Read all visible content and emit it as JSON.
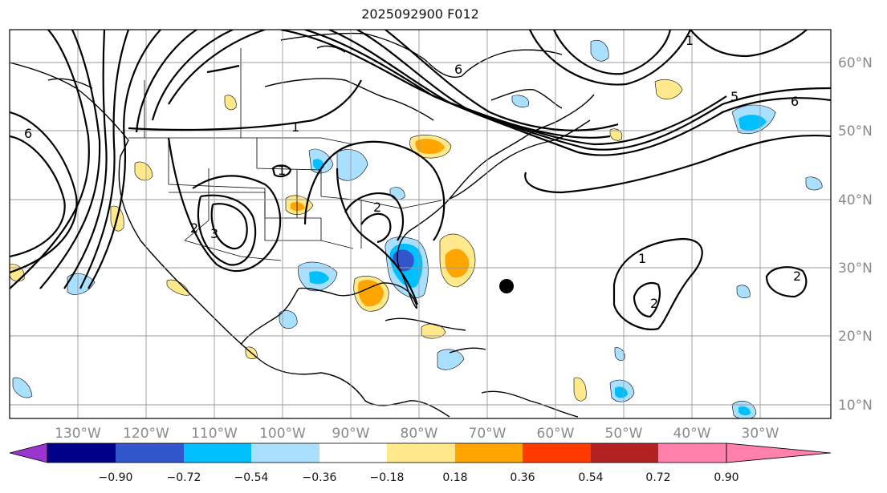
{
  "title": "2025092900 F012",
  "latitudes": [
    "60°N",
    "50°N",
    "40°N",
    "30°N",
    "20°N",
    "10°N"
  ],
  "longitudes": [
    "130°W",
    "120°W",
    "110°W",
    "100°W",
    "90°W",
    "80°W",
    "70°W",
    "60°W",
    "50°W",
    "40°W",
    "30°W"
  ],
  "colorbar": {
    "ticks": [
      "−0.90",
      "−0.72",
      "−0.54",
      "−0.36",
      "−0.18",
      "0.18",
      "0.36",
      "0.54",
      "0.72",
      "0.90"
    ],
    "colors": [
      "#9a35d2",
      "#000088",
      "#3355cc",
      "#00bfff",
      "#aae0ff",
      "#ffffff",
      "#ffe98a",
      "#ffa500",
      "#ff3a00",
      "#b22222",
      "#ff80aa"
    ]
  },
  "contour_labels": [
    "6",
    "1",
    "1",
    "2",
    "3",
    "2",
    "2",
    "1",
    "2",
    "5",
    "6",
    "6",
    "1"
  ],
  "colors": {
    "land_line": "#000000",
    "grid": "#9a9a9a"
  }
}
